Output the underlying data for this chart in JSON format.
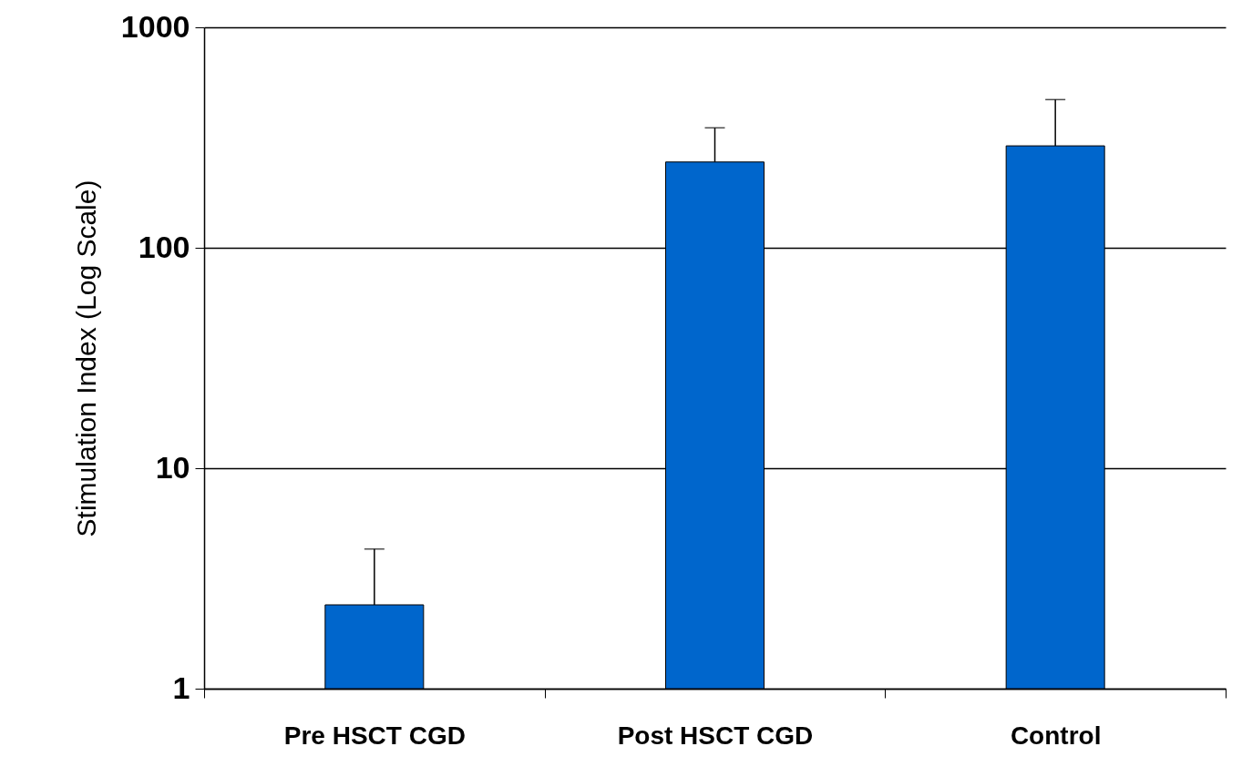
{
  "chart_data": {
    "type": "bar",
    "ylabel": "Stimulation Index (Log Scale)",
    "categories": [
      "Pre HSCT CGD",
      "Post HSCT CGD",
      "Control"
    ],
    "values": [
      2.4,
      245,
      290
    ],
    "errors": [
      [
        2.4,
        4.3
      ],
      [
        245,
        350
      ],
      [
        290,
        470
      ]
    ],
    "color": "#0066cc",
    "log": true,
    "ylim": [
      1,
      1000
    ],
    "yticks": [
      1,
      10,
      100,
      1000
    ],
    "grid": "y"
  }
}
